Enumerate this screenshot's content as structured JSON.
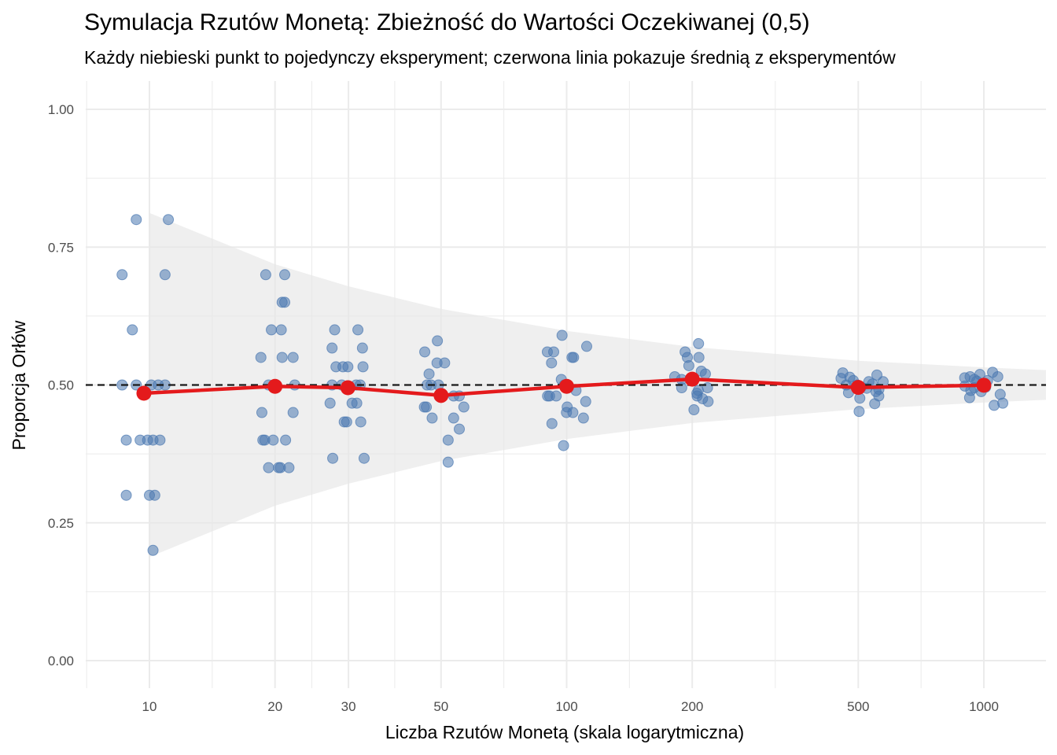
{
  "chart_data": {
    "type": "scatter",
    "title": "Symulacja Rzutów Monetą: Zbieżność do Wartości Oczekiwanej (0,5)",
    "subtitle": "Każdy niebieski punkt to pojedynczy eksperyment; czerwona linia pokazuje średnią z eksperymentów",
    "xlabel": "Liczba Rzutów Monetą (skala logarytmiczna)",
    "ylabel": "Proporcja Orłów",
    "x_scale": "log10",
    "xlim": [
      7.1,
      1500
    ],
    "ylim": [
      -0.05,
      1.05
    ],
    "x_ticks": [
      10,
      20,
      30,
      50,
      100,
      200,
      500,
      1000
    ],
    "x_tick_labels": [
      "10",
      "20",
      "30",
      "50",
      "100",
      "200",
      "500",
      "1000"
    ],
    "y_ticks": [
      0,
      0.25,
      0.5,
      0.75,
      1
    ],
    "y_tick_labels": [
      "0.00",
      "0.25",
      "0.50",
      "0.75",
      "1.00"
    ],
    "grid": true,
    "reference_line": {
      "y": 0.5,
      "style": "dashed",
      "color": "#1a1a1a"
    },
    "colors": {
      "points": "#4a78b0",
      "mean_line": "#e41a1c",
      "band": "#e6e6e6",
      "grid": "#ebebeb"
    },
    "confidence_band": {
      "x": [
        10,
        20,
        30,
        50,
        100,
        200,
        500,
        1000,
        1500
      ],
      "lower": [
        0.188,
        0.281,
        0.321,
        0.362,
        0.402,
        0.431,
        0.456,
        0.468,
        0.474
      ],
      "upper": [
        0.812,
        0.719,
        0.679,
        0.638,
        0.598,
        0.569,
        0.544,
        0.532,
        0.526
      ]
    },
    "series": [
      {
        "name": "",
        "kind": "points",
        "points": [
          {
            "x": 8.6,
            "y": 0.7
          },
          {
            "x": 9.3,
            "y": 0.8
          },
          {
            "x": 8.8,
            "y": 0.3
          },
          {
            "x": 9.1,
            "y": 0.6
          },
          {
            "x": 8.6,
            "y": 0.5
          },
          {
            "x": 9.3,
            "y": 0.5
          },
          {
            "x": 8.8,
            "y": 0.4
          },
          {
            "x": 9.5,
            "y": 0.4
          },
          {
            "x": 10.2,
            "y": 0.2
          },
          {
            "x": 10.0,
            "y": 0.3
          },
          {
            "x": 10.3,
            "y": 0.3
          },
          {
            "x": 9.9,
            "y": 0.4
          },
          {
            "x": 10.2,
            "y": 0.4
          },
          {
            "x": 10.6,
            "y": 0.4
          },
          {
            "x": 10.1,
            "y": 0.5
          },
          {
            "x": 10.5,
            "y": 0.5
          },
          {
            "x": 10.9,
            "y": 0.5
          },
          {
            "x": 10.9,
            "y": 0.7
          },
          {
            "x": 11.1,
            "y": 0.8
          },
          {
            "x": 19.0,
            "y": 0.7
          },
          {
            "x": 21.1,
            "y": 0.7
          },
          {
            "x": 20.8,
            "y": 0.65
          },
          {
            "x": 21.1,
            "y": 0.65
          },
          {
            "x": 19.6,
            "y": 0.6
          },
          {
            "x": 20.7,
            "y": 0.6
          },
          {
            "x": 18.5,
            "y": 0.55
          },
          {
            "x": 20.8,
            "y": 0.55
          },
          {
            "x": 22.1,
            "y": 0.55
          },
          {
            "x": 19.3,
            "y": 0.5
          },
          {
            "x": 22.3,
            "y": 0.5
          },
          {
            "x": 18.6,
            "y": 0.45
          },
          {
            "x": 22.1,
            "y": 0.45
          },
          {
            "x": 18.7,
            "y": 0.4
          },
          {
            "x": 18.9,
            "y": 0.4
          },
          {
            "x": 19.8,
            "y": 0.4
          },
          {
            "x": 21.2,
            "y": 0.4
          },
          {
            "x": 19.3,
            "y": 0.35
          },
          {
            "x": 20.4,
            "y": 0.35
          },
          {
            "x": 20.6,
            "y": 0.35
          },
          {
            "x": 21.6,
            "y": 0.35
          },
          {
            "x": 27.8,
            "y": 0.6
          },
          {
            "x": 31.6,
            "y": 0.6
          },
          {
            "x": 27.4,
            "y": 0.567
          },
          {
            "x": 32.4,
            "y": 0.567
          },
          {
            "x": 28.0,
            "y": 0.533
          },
          {
            "x": 29.1,
            "y": 0.533
          },
          {
            "x": 29.9,
            "y": 0.533
          },
          {
            "x": 32.5,
            "y": 0.533
          },
          {
            "x": 27.4,
            "y": 0.5
          },
          {
            "x": 28.9,
            "y": 0.5
          },
          {
            "x": 31.3,
            "y": 0.5
          },
          {
            "x": 32.0,
            "y": 0.5
          },
          {
            "x": 27.1,
            "y": 0.467
          },
          {
            "x": 30.6,
            "y": 0.467
          },
          {
            "x": 31.4,
            "y": 0.467
          },
          {
            "x": 29.3,
            "y": 0.433
          },
          {
            "x": 29.7,
            "y": 0.433
          },
          {
            "x": 32.1,
            "y": 0.433
          },
          {
            "x": 27.5,
            "y": 0.367
          },
          {
            "x": 32.7,
            "y": 0.367
          },
          {
            "x": 49.0,
            "y": 0.58
          },
          {
            "x": 45.7,
            "y": 0.56
          },
          {
            "x": 46.8,
            "y": 0.52
          },
          {
            "x": 48.9,
            "y": 0.54
          },
          {
            "x": 51.0,
            "y": 0.54
          },
          {
            "x": 46.3,
            "y": 0.5
          },
          {
            "x": 47.3,
            "y": 0.5
          },
          {
            "x": 49.3,
            "y": 0.5
          },
          {
            "x": 50.0,
            "y": 0.48
          },
          {
            "x": 53.6,
            "y": 0.48
          },
          {
            "x": 55.3,
            "y": 0.48
          },
          {
            "x": 45.6,
            "y": 0.46
          },
          {
            "x": 46.1,
            "y": 0.46
          },
          {
            "x": 56.7,
            "y": 0.46
          },
          {
            "x": 47.6,
            "y": 0.44
          },
          {
            "x": 53.6,
            "y": 0.44
          },
          {
            "x": 55.3,
            "y": 0.42
          },
          {
            "x": 52.0,
            "y": 0.4
          },
          {
            "x": 52.0,
            "y": 0.36
          },
          {
            "x": 97.5,
            "y": 0.59
          },
          {
            "x": 89.9,
            "y": 0.56
          },
          {
            "x": 93.1,
            "y": 0.56
          },
          {
            "x": 103.0,
            "y": 0.55
          },
          {
            "x": 103.9,
            "y": 0.55
          },
          {
            "x": 111.7,
            "y": 0.57
          },
          {
            "x": 92.0,
            "y": 0.54
          },
          {
            "x": 97.1,
            "y": 0.51
          },
          {
            "x": 98.7,
            "y": 0.5
          },
          {
            "x": 105.3,
            "y": 0.49
          },
          {
            "x": 90.0,
            "y": 0.48
          },
          {
            "x": 91.0,
            "y": 0.48
          },
          {
            "x": 94.4,
            "y": 0.48
          },
          {
            "x": 111.1,
            "y": 0.47
          },
          {
            "x": 100.3,
            "y": 0.46
          },
          {
            "x": 99.9,
            "y": 0.45
          },
          {
            "x": 103.5,
            "y": 0.45
          },
          {
            "x": 109.7,
            "y": 0.44
          },
          {
            "x": 92.2,
            "y": 0.43
          },
          {
            "x": 98.3,
            "y": 0.39
          },
          {
            "x": 207.1,
            "y": 0.575
          },
          {
            "x": 192.3,
            "y": 0.56
          },
          {
            "x": 194.7,
            "y": 0.55
          },
          {
            "x": 207.5,
            "y": 0.55
          },
          {
            "x": 196.3,
            "y": 0.535
          },
          {
            "x": 210.3,
            "y": 0.525
          },
          {
            "x": 215.1,
            "y": 0.52
          },
          {
            "x": 181.6,
            "y": 0.515
          },
          {
            "x": 188.6,
            "y": 0.51
          },
          {
            "x": 200.8,
            "y": 0.51
          },
          {
            "x": 217.6,
            "y": 0.495
          },
          {
            "x": 188.7,
            "y": 0.495
          },
          {
            "x": 206.8,
            "y": 0.49
          },
          {
            "x": 205.2,
            "y": 0.485
          },
          {
            "x": 211.7,
            "y": 0.475
          },
          {
            "x": 205.5,
            "y": 0.48
          },
          {
            "x": 218.3,
            "y": 0.47
          },
          {
            "x": 201.9,
            "y": 0.455
          },
          {
            "x": 459.1,
            "y": 0.522
          },
          {
            "x": 554.2,
            "y": 0.518
          },
          {
            "x": 477.1,
            "y": 0.514
          },
          {
            "x": 454.7,
            "y": 0.512
          },
          {
            "x": 486.6,
            "y": 0.508
          },
          {
            "x": 530.0,
            "y": 0.506
          },
          {
            "x": 573.6,
            "y": 0.506
          },
          {
            "x": 541.0,
            "y": 0.502
          },
          {
            "x": 468.0,
            "y": 0.5
          },
          {
            "x": 497.0,
            "y": 0.5
          },
          {
            "x": 508.0,
            "y": 0.496
          },
          {
            "x": 524.0,
            "y": 0.494
          },
          {
            "x": 560.3,
            "y": 0.492
          },
          {
            "x": 551.3,
            "y": 0.488
          },
          {
            "x": 473.8,
            "y": 0.486
          },
          {
            "x": 560.0,
            "y": 0.48
          },
          {
            "x": 504.3,
            "y": 0.476
          },
          {
            "x": 547.5,
            "y": 0.466
          },
          {
            "x": 502.4,
            "y": 0.452
          },
          {
            "x": 1049.4,
            "y": 0.523
          },
          {
            "x": 978.3,
            "y": 0.519
          },
          {
            "x": 926.9,
            "y": 0.515
          },
          {
            "x": 899.6,
            "y": 0.513
          },
          {
            "x": 1079.8,
            "y": 0.515
          },
          {
            "x": 948.5,
            "y": 0.51
          },
          {
            "x": 961.9,
            "y": 0.507
          },
          {
            "x": 1020.5,
            "y": 0.508
          },
          {
            "x": 1005.0,
            "y": 0.503
          },
          {
            "x": 988.0,
            "y": 0.5
          },
          {
            "x": 900.5,
            "y": 0.498
          },
          {
            "x": 1010.0,
            "y": 0.496
          },
          {
            "x": 948.1,
            "y": 0.495
          },
          {
            "x": 930.5,
            "y": 0.49
          },
          {
            "x": 985.5,
            "y": 0.488
          },
          {
            "x": 1094.5,
            "y": 0.483
          },
          {
            "x": 924.2,
            "y": 0.477
          },
          {
            "x": 1110.0,
            "y": 0.467
          },
          {
            "x": 1058.3,
            "y": 0.463
          }
        ]
      },
      {
        "name": "",
        "kind": "line",
        "points": [
          {
            "x": 9.7,
            "y": 0.485
          },
          {
            "x": 20.0,
            "y": 0.4975
          },
          {
            "x": 29.9,
            "y": 0.495
          },
          {
            "x": 50.0,
            "y": 0.481
          },
          {
            "x": 100.0,
            "y": 0.4975
          },
          {
            "x": 200.0,
            "y": 0.5105
          },
          {
            "x": 500.0,
            "y": 0.4955
          },
          {
            "x": 1000.0,
            "y": 0.4995
          }
        ]
      }
    ]
  }
}
